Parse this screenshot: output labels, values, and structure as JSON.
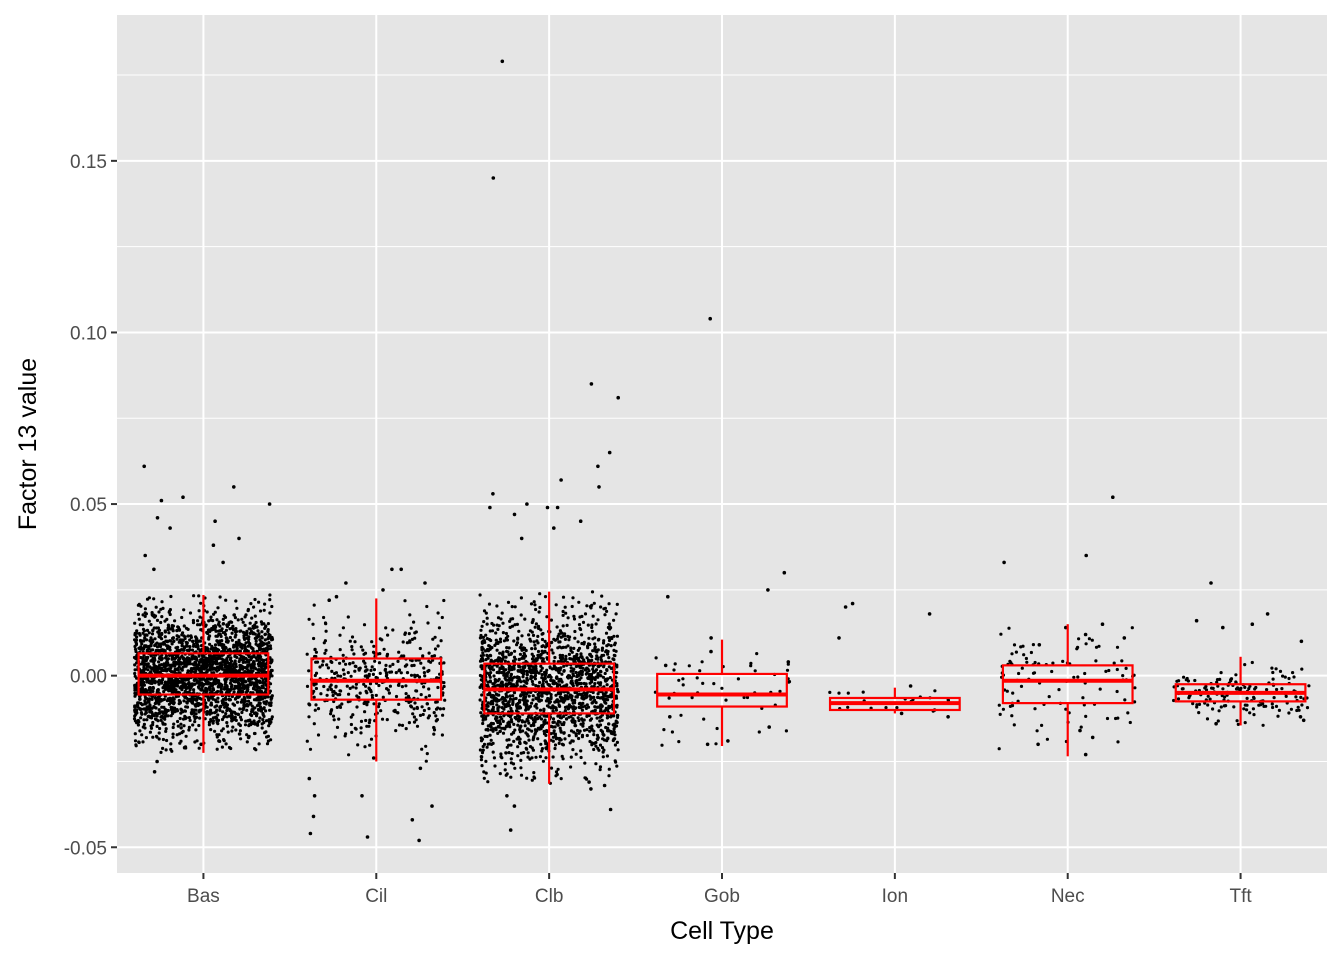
{
  "chart_data": {
    "type": "box",
    "title": "",
    "xlabel": "Cell Type",
    "ylabel": "Factor 13 value",
    "categories": [
      "Bas",
      "Cil",
      "Clb",
      "Gob",
      "Ion",
      "Nec",
      "Tft"
    ],
    "ylim": [
      -0.0575,
      0.1925
    ],
    "yticks": [
      -0.05,
      0.0,
      0.05,
      0.1,
      0.15
    ],
    "ytick_labels": [
      "-0.05",
      "0.00",
      "0.05",
      "0.10",
      "0.15"
    ],
    "grid": true,
    "box_color": "#ff0000",
    "point_color": "#000000",
    "panel_background": "#e5e5e5",
    "grid_color": "#ffffff",
    "boxes": [
      {
        "category": "Bas",
        "q1": -0.0055,
        "median": 0.0,
        "q3": 0.0065,
        "whisker_low": -0.0225,
        "whisker_high": 0.0235
      },
      {
        "category": "Cil",
        "q1": -0.007,
        "median": -0.0015,
        "q3": 0.005,
        "whisker_low": -0.025,
        "whisker_high": 0.0225
      },
      {
        "category": "Clb",
        "q1": -0.011,
        "median": -0.004,
        "q3": 0.0035,
        "whisker_low": -0.0315,
        "whisker_high": 0.0245
      },
      {
        "category": "Gob",
        "q1": -0.009,
        "median": -0.0055,
        "q3": 0.0005,
        "whisker_low": -0.0205,
        "whisker_high": 0.0105
      },
      {
        "category": "Ion",
        "q1": -0.01,
        "median": -0.008,
        "q3": -0.0065,
        "whisker_low": -0.011,
        "whisker_high": -0.0035
      },
      {
        "category": "Nec",
        "q1": -0.008,
        "median": -0.0015,
        "q3": 0.003,
        "whisker_low": -0.0235,
        "whisker_high": 0.015
      },
      {
        "category": "Tft",
        "q1": -0.0075,
        "median": -0.005,
        "q3": -0.0025,
        "whisker_low": -0.0145,
        "whisker_high": 0.0055
      }
    ],
    "points": [
      {
        "category": "Bas",
        "n": 2400,
        "values": [
          0.061,
          0.055,
          0.052,
          0.051,
          0.05,
          0.046,
          0.045,
          0.043,
          0.04,
          0.038,
          0.035,
          0.033,
          0.031,
          -0.021,
          -0.02,
          -0.019,
          -0.025,
          -0.028,
          -0.018,
          -0.017
        ]
      },
      {
        "category": "Cil",
        "n": 450,
        "values": [
          0.031,
          0.031,
          0.027,
          0.027,
          0.025,
          0.023,
          0.022,
          -0.035,
          -0.035,
          -0.038,
          -0.041,
          -0.042,
          -0.046,
          -0.047,
          -0.048,
          -0.03,
          -0.027,
          -0.024
        ]
      },
      {
        "category": "Clb",
        "n": 1800,
        "values": [
          0.179,
          0.145,
          0.085,
          0.081,
          0.065,
          0.061,
          0.057,
          0.055,
          0.053,
          0.05,
          0.049,
          0.049,
          0.049,
          0.047,
          0.045,
          0.043,
          0.04,
          -0.045,
          -0.039,
          -0.038,
          -0.035,
          -0.033,
          -0.032,
          -0.031
        ]
      },
      {
        "category": "Gob",
        "n": 60,
        "values": [
          0.104,
          0.03,
          0.025,
          0.023,
          0.011,
          0.007,
          0.004,
          0.003,
          -0.02,
          -0.019,
          -0.015,
          -0.012
        ]
      },
      {
        "category": "Ion",
        "n": 28,
        "values": [
          0.021,
          0.02,
          0.018,
          0.011,
          -0.003,
          -0.012,
          -0.011,
          -0.01
        ]
      },
      {
        "category": "Nec",
        "n": 120,
        "values": [
          0.052,
          0.035,
          0.033,
          0.015,
          0.014,
          0.012,
          0.011,
          0.009,
          -0.023,
          -0.02,
          -0.018,
          -0.016
        ]
      },
      {
        "category": "Tft",
        "n": 160,
        "values": [
          0.027,
          0.018,
          0.016,
          0.015,
          0.014,
          0.01,
          -0.014,
          -0.013,
          -0.012
        ]
      }
    ]
  }
}
